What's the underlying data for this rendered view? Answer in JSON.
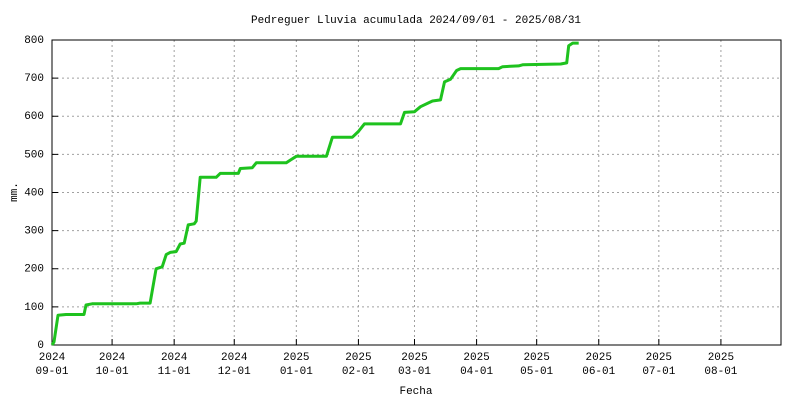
{
  "chart_data": {
    "type": "line",
    "title": "Pedreguer Lluvia acumulada 2024/09/01 - 2025/08/31",
    "x_label": "Fecha",
    "y_label": "mm.",
    "xlim": [
      "2024-09-01",
      "2025-08-31"
    ],
    "xticks": [
      {
        "value": "2024-09-01",
        "label": [
          "2024",
          "09-01"
        ]
      },
      {
        "value": "2024-10-01",
        "label": [
          "2024",
          "10-01"
        ]
      },
      {
        "value": "2024-11-01",
        "label": [
          "2024",
          "11-01"
        ]
      },
      {
        "value": "2024-12-01",
        "label": [
          "2024",
          "12-01"
        ]
      },
      {
        "value": "2025-01-01",
        "label": [
          "2025",
          "01-01"
        ]
      },
      {
        "value": "2025-02-01",
        "label": [
          "2025",
          "02-01"
        ]
      },
      {
        "value": "2025-03-01",
        "label": [
          "2025",
          "03-01"
        ]
      },
      {
        "value": "2025-04-01",
        "label": [
          "2025",
          "04-01"
        ]
      },
      {
        "value": "2025-05-01",
        "label": [
          "2025",
          "05-01"
        ]
      },
      {
        "value": "2025-06-01",
        "label": [
          "2025",
          "06-01"
        ]
      },
      {
        "value": "2025-07-01",
        "label": [
          "2025",
          "07-01"
        ]
      },
      {
        "value": "2025-08-01",
        "label": [
          "2025",
          "08-01"
        ]
      }
    ],
    "ylim": [
      0,
      800
    ],
    "yticks": [
      0,
      100,
      200,
      300,
      400,
      500,
      600,
      700,
      800
    ],
    "grid": true,
    "x": [
      "2024-09-01",
      "2024-09-02",
      "2024-09-04",
      "2024-09-08",
      "2024-09-17",
      "2024-09-18",
      "2024-09-21",
      "2024-10-13",
      "2024-10-15",
      "2024-10-20",
      "2024-10-23",
      "2024-10-26",
      "2024-10-28",
      "2024-10-30",
      "2024-11-02",
      "2024-11-04",
      "2024-11-06",
      "2024-11-08",
      "2024-11-11",
      "2024-11-12",
      "2024-11-14",
      "2024-11-22",
      "2024-11-24",
      "2024-12-03",
      "2024-12-04",
      "2024-12-10",
      "2024-12-12",
      "2024-12-27",
      "2024-12-29",
      "2025-01-01",
      "2025-01-16",
      "2025-01-19",
      "2025-01-29",
      "2025-02-01",
      "2025-02-04",
      "2025-02-22",
      "2025-02-24",
      "2025-03-01",
      "2025-03-04",
      "2025-03-08",
      "2025-03-10",
      "2025-03-14",
      "2025-03-16",
      "2025-03-19",
      "2025-03-22",
      "2025-03-24",
      "2025-04-12",
      "2025-04-14",
      "2025-04-22",
      "2025-04-24",
      "2025-05-13",
      "2025-05-16",
      "2025-05-17",
      "2025-05-19",
      "2025-05-22"
    ],
    "series": [
      {
        "name": "Lluvia acumulada",
        "color": "#1ec21e",
        "values": [
          0,
          8,
          78,
          80,
          80,
          105,
          108,
          108,
          110,
          110,
          200,
          205,
          237,
          243,
          245,
          265,
          267,
          315,
          318,
          325,
          440,
          440,
          450,
          450,
          463,
          465,
          478,
          478,
          485,
          495,
          495,
          545,
          545,
          560,
          580,
          580,
          610,
          612,
          625,
          635,
          640,
          643,
          690,
          697,
          720,
          725,
          725,
          730,
          732,
          735,
          737,
          740,
          785,
          792,
          792
        ]
      }
    ]
  }
}
